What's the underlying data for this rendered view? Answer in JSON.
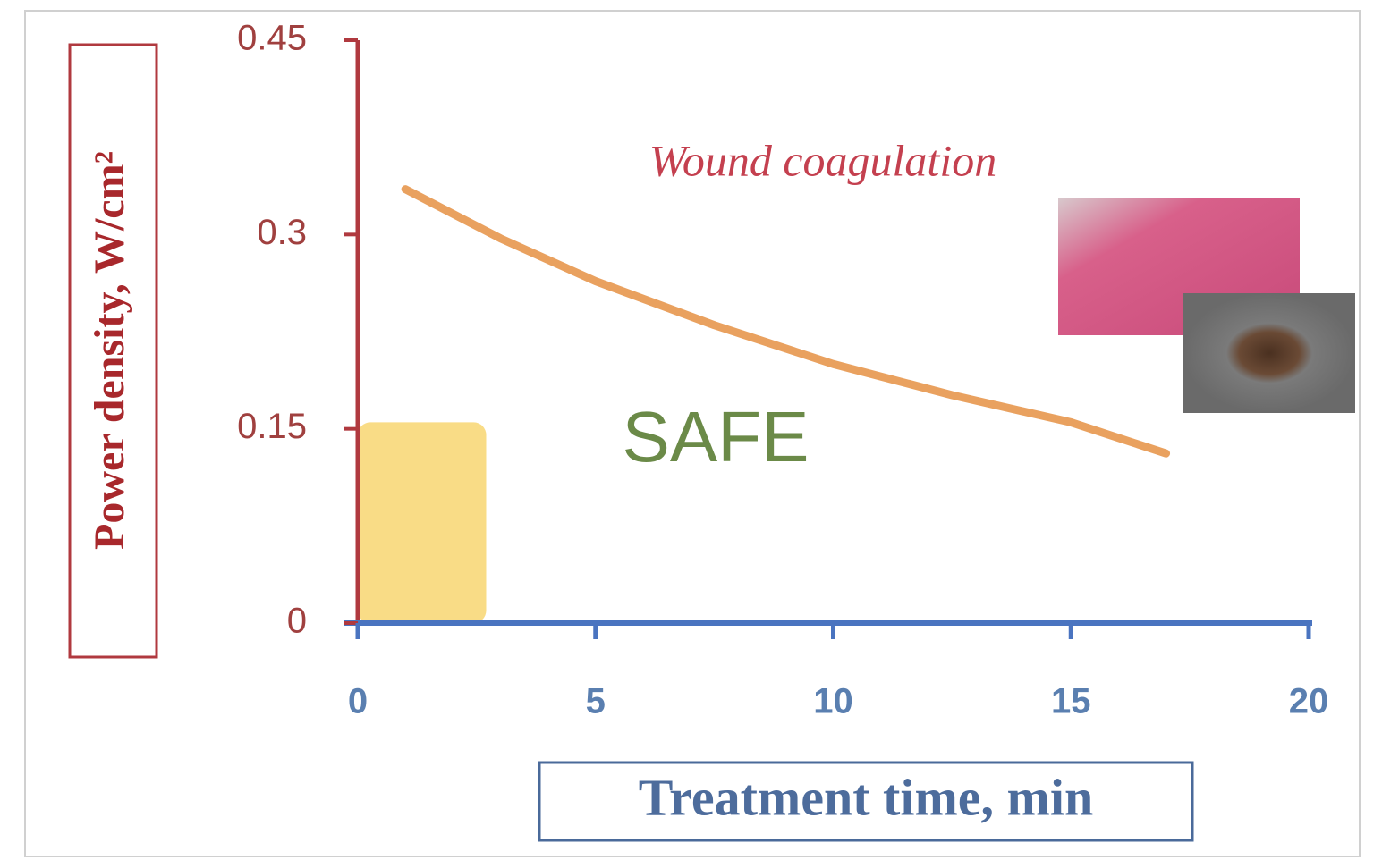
{
  "chart_data": {
    "type": "line",
    "x_label": "Treatment time, min",
    "y_label": "Power density, W/cm²",
    "annotations": [
      "Wound coagulation",
      "SAFE"
    ],
    "series": [
      {
        "color": "#e9a15f",
        "x": [
          1,
          3,
          5,
          7.5,
          10,
          12.5,
          15,
          17
        ],
        "values": [
          0.335,
          0.297,
          0.264,
          0.23,
          0.2,
          0.176,
          0.155,
          0.131
        ]
      }
    ],
    "safe_zone": {
      "x": [
        0,
        2.7
      ],
      "y": 0.155,
      "color": "#f9dc86"
    },
    "xlim": [
      0,
      20
    ],
    "xticks": [
      0,
      5,
      10,
      15,
      20
    ],
    "ylim": [
      0,
      0.45
    ],
    "yticks": [
      0,
      0.15,
      0.3,
      0.45
    ],
    "x_axis_color": "#4a74c0",
    "y_axis_color": "#b0393f"
  }
}
